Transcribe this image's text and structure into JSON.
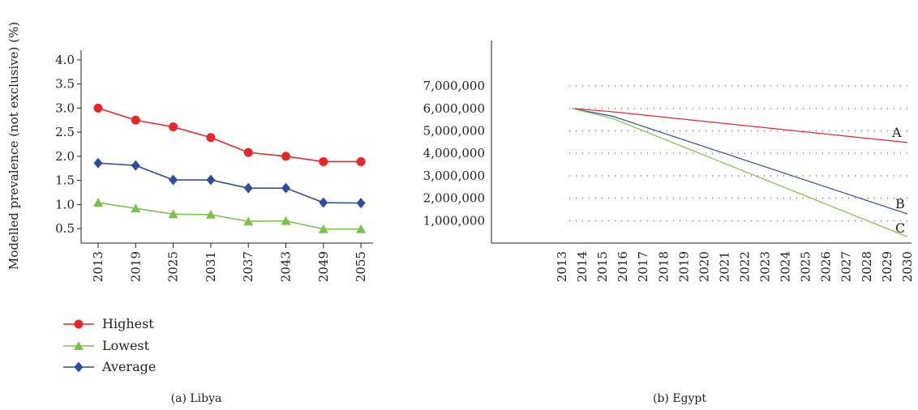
{
  "chart_data": [
    {
      "type": "line",
      "caption": "(a)  Libya",
      "ylabel": "Modelled prevalence (not exclusive) (%)",
      "xlabel": "",
      "categories": [
        "2013",
        "2019",
        "2025",
        "2031",
        "2037",
        "2043",
        "2049",
        "2055"
      ],
      "yticks": [
        "0.5",
        "1.0",
        "1.5",
        "2.0",
        "2.5",
        "3.0",
        "3.5",
        "4.0"
      ],
      "ylim": [
        0.2,
        4.2
      ],
      "grid": false,
      "legend_position": "bottom-left",
      "series": [
        {
          "name": "Highest",
          "color": "#e8262b",
          "marker": "circle",
          "values": [
            3.0,
            2.75,
            2.61,
            2.39,
            2.08,
            2.0,
            1.89,
            1.89
          ]
        },
        {
          "name": "Lowest",
          "color": "#7cc24a",
          "marker": "triangle",
          "values": [
            1.04,
            0.92,
            0.8,
            0.79,
            0.65,
            0.66,
            0.49,
            0.49
          ]
        },
        {
          "name": "Average",
          "color": "#2e4e9c",
          "marker": "diamond",
          "values": [
            1.86,
            1.81,
            1.51,
            1.51,
            1.34,
            1.34,
            1.04,
            1.03
          ]
        }
      ]
    },
    {
      "type": "line",
      "caption": "(b)  Egypt",
      "xlabel": "",
      "ylabel": "",
      "categories": [
        "2013",
        "2014",
        "2015",
        "2016",
        "2017",
        "2018",
        "2019",
        "2020",
        "2021",
        "2022",
        "2023",
        "2024",
        "2025",
        "2026",
        "2027",
        "2028",
        "2029",
        "2030"
      ],
      "yticks": [
        "1,000,000",
        "2,000,000",
        "3,000,000",
        "4,000,000",
        "5,000,000",
        "6,000,000",
        "7,000,000"
      ],
      "ylim": [
        0,
        8000000
      ],
      "grid": true,
      "series": [
        {
          "name": "A",
          "color": "#e8262b",
          "x": [
            2013.5,
            2015.5,
            2030
          ],
          "values": [
            6000000,
            5850000,
            4480000
          ]
        },
        {
          "name": "B",
          "color": "#2e4e9c",
          "x": [
            2013.5,
            2015.5,
            2030
          ],
          "values": [
            6000000,
            5650000,
            1300000
          ]
        },
        {
          "name": "C",
          "color": "#7cc24a",
          "x": [
            2013.5,
            2015.5,
            2030
          ],
          "values": [
            6000000,
            5550000,
            280000
          ]
        }
      ]
    }
  ]
}
